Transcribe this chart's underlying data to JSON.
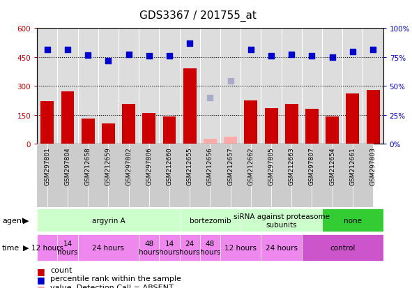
{
  "title": "GDS3367 / 201755_at",
  "samples": [
    "GSM297801",
    "GSM297804",
    "GSM212658",
    "GSM212659",
    "GSM297802",
    "GSM297806",
    "GSM212660",
    "GSM212655",
    "GSM212656",
    "GSM212657",
    "GSM212662",
    "GSM297805",
    "GSM212663",
    "GSM297807",
    "GSM212654",
    "GSM212661",
    "GSM297803"
  ],
  "counts": [
    220,
    270,
    130,
    105,
    205,
    160,
    140,
    390,
    25,
    35,
    225,
    185,
    205,
    180,
    140,
    260,
    280
  ],
  "counts_absent": [
    false,
    false,
    false,
    false,
    false,
    false,
    false,
    false,
    true,
    true,
    false,
    false,
    false,
    false,
    false,
    false,
    false
  ],
  "percentile_ranks": [
    490,
    490,
    460,
    430,
    465,
    455,
    455,
    520,
    240,
    325,
    490,
    455,
    465,
    455,
    450,
    480,
    490
  ],
  "ranks_absent": [
    false,
    false,
    false,
    false,
    false,
    false,
    false,
    false,
    true,
    true,
    false,
    false,
    false,
    false,
    false,
    false,
    false
  ],
  "ylim": [
    0,
    600
  ],
  "yticks_left": [
    0,
    150,
    300,
    450,
    600
  ],
  "yticks_right_labels": [
    "0%",
    "25%",
    "50%",
    "75%",
    "100%"
  ],
  "yticks_right_vals": [
    0,
    150,
    300,
    450,
    600
  ],
  "dotted_lines": [
    150,
    300,
    450
  ],
  "agent_groups": [
    {
      "label": "argyrin A",
      "start": 0,
      "end": 7,
      "color": "#ccffcc"
    },
    {
      "label": "bortezomib",
      "start": 7,
      "end": 10,
      "color": "#ccffcc"
    },
    {
      "label": "siRNA against proteasome\nsubunits",
      "start": 10,
      "end": 14,
      "color": "#ccffcc"
    },
    {
      "label": "none",
      "start": 14,
      "end": 17,
      "color": "#33cc33"
    }
  ],
  "time_groups": [
    {
      "label": "12 hours",
      "start": 0,
      "end": 1,
      "color": "#ee88ee"
    },
    {
      "label": "14\nhours",
      "start": 1,
      "end": 2,
      "color": "#ee88ee"
    },
    {
      "label": "24 hours",
      "start": 2,
      "end": 5,
      "color": "#ee88ee"
    },
    {
      "label": "48\nhours",
      "start": 5,
      "end": 6,
      "color": "#ee88ee"
    },
    {
      "label": "14\nhours",
      "start": 6,
      "end": 7,
      "color": "#ee88ee"
    },
    {
      "label": "24\nhours",
      "start": 7,
      "end": 8,
      "color": "#ee88ee"
    },
    {
      "label": "48\nhours",
      "start": 8,
      "end": 9,
      "color": "#ee88ee"
    },
    {
      "label": "12 hours",
      "start": 9,
      "end": 11,
      "color": "#ee88ee"
    },
    {
      "label": "24 hours",
      "start": 11,
      "end": 13,
      "color": "#ee88ee"
    },
    {
      "label": "control",
      "start": 13,
      "end": 17,
      "color": "#cc55cc"
    }
  ],
  "bar_color": "#cc0000",
  "bar_color_absent": "#ffaaaa",
  "dot_color": "#0000cc",
  "dot_color_absent": "#aaaacc",
  "dot_size": 40,
  "background_color": "#ffffff",
  "plot_bg_color": "#dddddd",
  "label_bg_color": "#cccccc",
  "xlabel_color": "#cc0000",
  "ylabel_right_color": "#0000cc",
  "title_fontsize": 11,
  "tick_fontsize": 7.5,
  "sample_fontsize": 6.5,
  "group_fontsize": 7.5,
  "time_fontsize": 7.5,
  "legend_fontsize": 8
}
